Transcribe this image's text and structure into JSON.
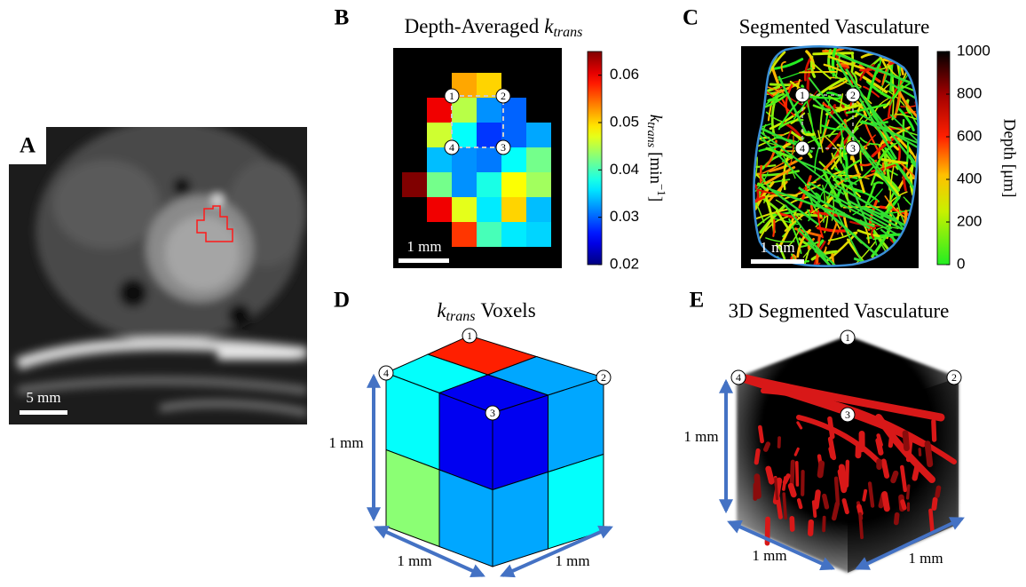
{
  "panel_a": {
    "label": "A",
    "scale_bar": "5 mm"
  },
  "panel_b": {
    "label": "B",
    "title": "Depth-Averaged",
    "title_symbol": "k",
    "title_subscript": "trans",
    "grid": [
      [
        null,
        null,
        0.052,
        0.05,
        null,
        null
      ],
      [
        null,
        0.06,
        0.045,
        0.032,
        0.03,
        null
      ],
      [
        null,
        0.046,
        0.037,
        0.028,
        0.03,
        0.033
      ],
      [
        null,
        0.034,
        0.032,
        0.031,
        0.037,
        0.042
      ],
      [
        0.065,
        0.042,
        0.032,
        0.038,
        0.048,
        0.044
      ],
      [
        null,
        0.06,
        0.047,
        0.036,
        0.05,
        0.034
      ],
      [
        null,
        null,
        0.057,
        0.04,
        0.036,
        0.035
      ]
    ],
    "colorbar": {
      "label_symbol": "k",
      "label_subscript": "trans",
      "label_unit": "[min",
      "label_exponent": "−1",
      "label_close": "]",
      "lim": [
        0.02,
        0.065
      ],
      "ticks": [
        0.02,
        0.03,
        0.04,
        0.05,
        0.06
      ]
    },
    "scale_bar": "1 mm",
    "markers": [
      "1",
      "2",
      "3",
      "4"
    ]
  },
  "panel_c": {
    "label": "C",
    "title": "Segmented Vasculature",
    "colorbar": {
      "label": "Depth [μm]",
      "lim": [
        0,
        1000
      ],
      "ticks": [
        0,
        200,
        400,
        600,
        800,
        1000
      ]
    },
    "scale_bar": "1 mm",
    "markers": [
      "1",
      "2",
      "3",
      "4"
    ]
  },
  "panel_d": {
    "label": "D",
    "title_symbol": "k",
    "title_subscript": "trans",
    "title": "Voxels",
    "voxels": {
      "top_back": 0.058,
      "top_left": 0.037,
      "top_right": 0.033,
      "top_front": 0.025,
      "bottom_left": 0.043,
      "bottom_front": 0.033,
      "bottom_right": 0.037
    },
    "markers": [
      "1",
      "2",
      "3",
      "4"
    ],
    "dimensions": [
      "1 mm",
      "1 mm",
      "1 mm"
    ]
  },
  "panel_e": {
    "label": "E",
    "title": "3D Segmented Vasculature",
    "markers": [
      "1",
      "2",
      "3",
      "4"
    ],
    "dimensions": [
      "1 mm",
      "1 mm",
      "1 mm"
    ]
  }
}
